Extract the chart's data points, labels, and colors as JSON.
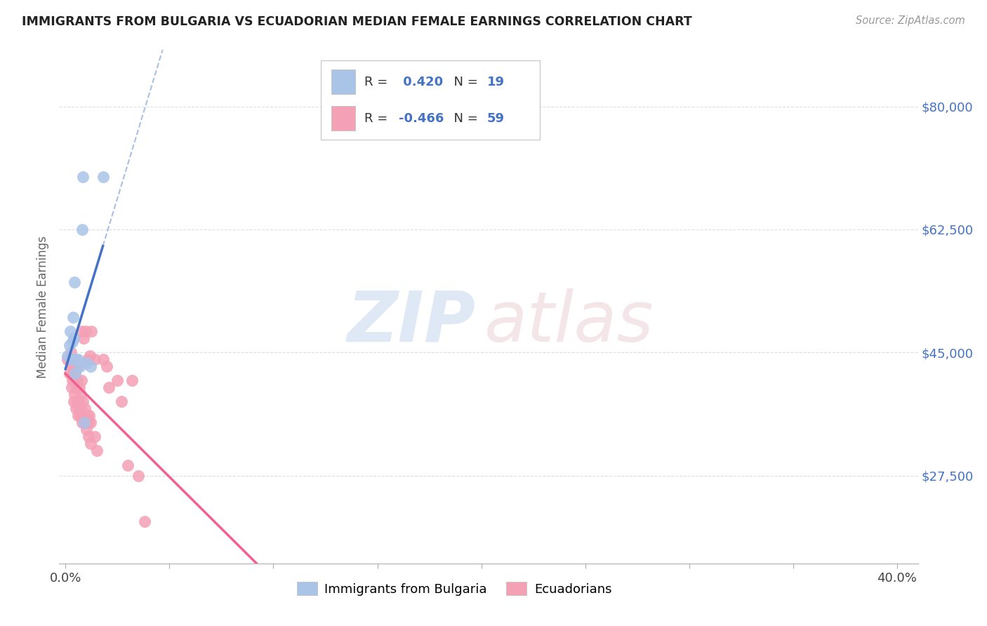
{
  "title": "IMMIGRANTS FROM BULGARIA VS ECUADORIAN MEDIAN FEMALE EARNINGS CORRELATION CHART",
  "source": "Source: ZipAtlas.com",
  "ylabel": "Median Female Earnings",
  "legend_label_bulgaria": "Immigrants from Bulgaria",
  "legend_label_ecuador": "Ecuadorians",
  "ylim": [
    15000,
    88000
  ],
  "xlim": [
    -0.3,
    41.0
  ],
  "r_bulgaria": 0.42,
  "n_bulgaria": 19,
  "r_ecuador": -0.466,
  "n_ecuador": 59,
  "color_bulgaria": "#aac4e8",
  "color_ecuador": "#f4a0b5",
  "line_color_bulgaria": "#4472c4",
  "line_color_ecuador": "#f06090",
  "grid_color": "#d8dfe8",
  "bulgaria_points": [
    [
      0.1,
      44500
    ],
    [
      0.18,
      46000
    ],
    [
      0.22,
      48000
    ],
    [
      0.3,
      44000
    ],
    [
      0.32,
      46500
    ],
    [
      0.35,
      50000
    ],
    [
      0.38,
      44000
    ],
    [
      0.4,
      47000
    ],
    [
      0.42,
      55000
    ],
    [
      0.48,
      42000
    ],
    [
      0.5,
      44000
    ],
    [
      0.6,
      44000
    ],
    [
      0.7,
      43000
    ],
    [
      0.8,
      62500
    ],
    [
      0.85,
      70000
    ],
    [
      0.9,
      35000
    ],
    [
      1.0,
      43500
    ],
    [
      1.2,
      43000
    ],
    [
      1.8,
      70000
    ]
  ],
  "ecuador_points": [
    [
      0.1,
      44000
    ],
    [
      0.2,
      42000
    ],
    [
      0.22,
      43500
    ],
    [
      0.25,
      45000
    ],
    [
      0.3,
      40000
    ],
    [
      0.32,
      41000
    ],
    [
      0.34,
      42000
    ],
    [
      0.36,
      43000
    ],
    [
      0.38,
      44000
    ],
    [
      0.4,
      38000
    ],
    [
      0.42,
      39000
    ],
    [
      0.44,
      41000
    ],
    [
      0.46,
      42000
    ],
    [
      0.48,
      43000
    ],
    [
      0.5,
      37000
    ],
    [
      0.52,
      38000
    ],
    [
      0.54,
      40000
    ],
    [
      0.56,
      41000
    ],
    [
      0.58,
      43000
    ],
    [
      0.6,
      36000
    ],
    [
      0.62,
      37000
    ],
    [
      0.64,
      38000
    ],
    [
      0.66,
      40000
    ],
    [
      0.7,
      36000
    ],
    [
      0.72,
      37000
    ],
    [
      0.74,
      39000
    ],
    [
      0.76,
      41000
    ],
    [
      0.78,
      48000
    ],
    [
      0.8,
      35000
    ],
    [
      0.82,
      36000
    ],
    [
      0.84,
      38000
    ],
    [
      0.86,
      47000
    ],
    [
      0.9,
      35000
    ],
    [
      0.92,
      36000
    ],
    [
      0.94,
      37000
    ],
    [
      0.96,
      48000
    ],
    [
      1.0,
      34000
    ],
    [
      1.02,
      35000
    ],
    [
      1.04,
      36000
    ],
    [
      1.06,
      44000
    ],
    [
      1.1,
      33000
    ],
    [
      1.12,
      35000
    ],
    [
      1.14,
      36000
    ],
    [
      1.16,
      44500
    ],
    [
      1.2,
      32000
    ],
    [
      1.22,
      35000
    ],
    [
      1.24,
      48000
    ],
    [
      1.4,
      33000
    ],
    [
      1.42,
      44000
    ],
    [
      1.5,
      31000
    ],
    [
      1.8,
      44000
    ],
    [
      2.0,
      43000
    ],
    [
      2.1,
      40000
    ],
    [
      2.5,
      41000
    ],
    [
      2.7,
      38000
    ],
    [
      3.0,
      29000
    ],
    [
      3.2,
      41000
    ],
    [
      3.5,
      27500
    ],
    [
      3.8,
      21000
    ]
  ]
}
